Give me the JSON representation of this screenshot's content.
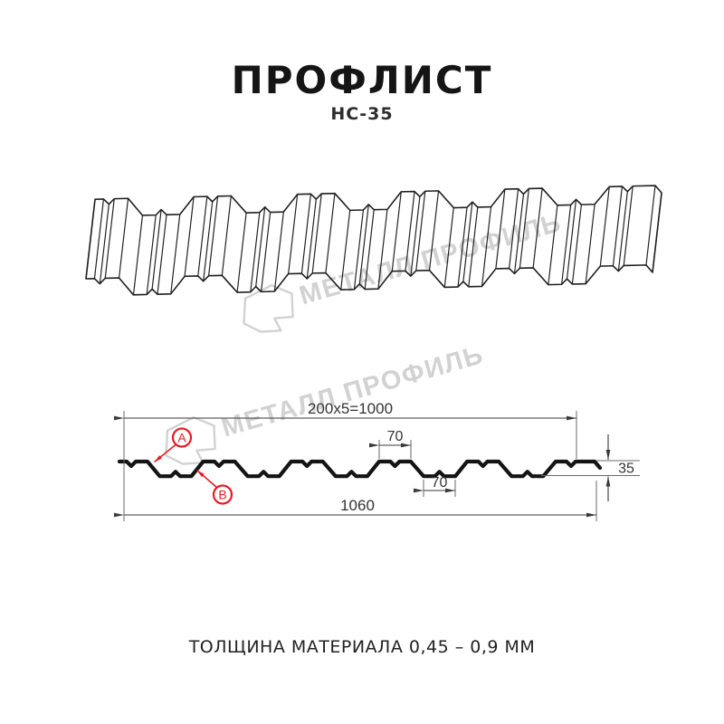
{
  "header": {
    "title": "ПРОФЛИСТ",
    "subtitle": "НС-35"
  },
  "watermark": {
    "brand": "МЕТАЛЛ ПРОФИЛЬ"
  },
  "diagram": {
    "dims": {
      "pitch": "200x5=1000",
      "top_flange_width": "70",
      "bottom_flange_width": "70",
      "profile_height": "35",
      "overall_width": "1060"
    },
    "callouts": {
      "a": "А",
      "b": "В"
    }
  },
  "footer": {
    "note": "ТОЛЩИНА МАТЕРИАЛА 0,45 – 0,9 ММ"
  },
  "colors": {
    "line": "#1a1a1a",
    "dimension": "#3a3a3a",
    "accent_red": "#e31e24",
    "watermark": "#d2d2d2",
    "background": "#ffffff"
  }
}
